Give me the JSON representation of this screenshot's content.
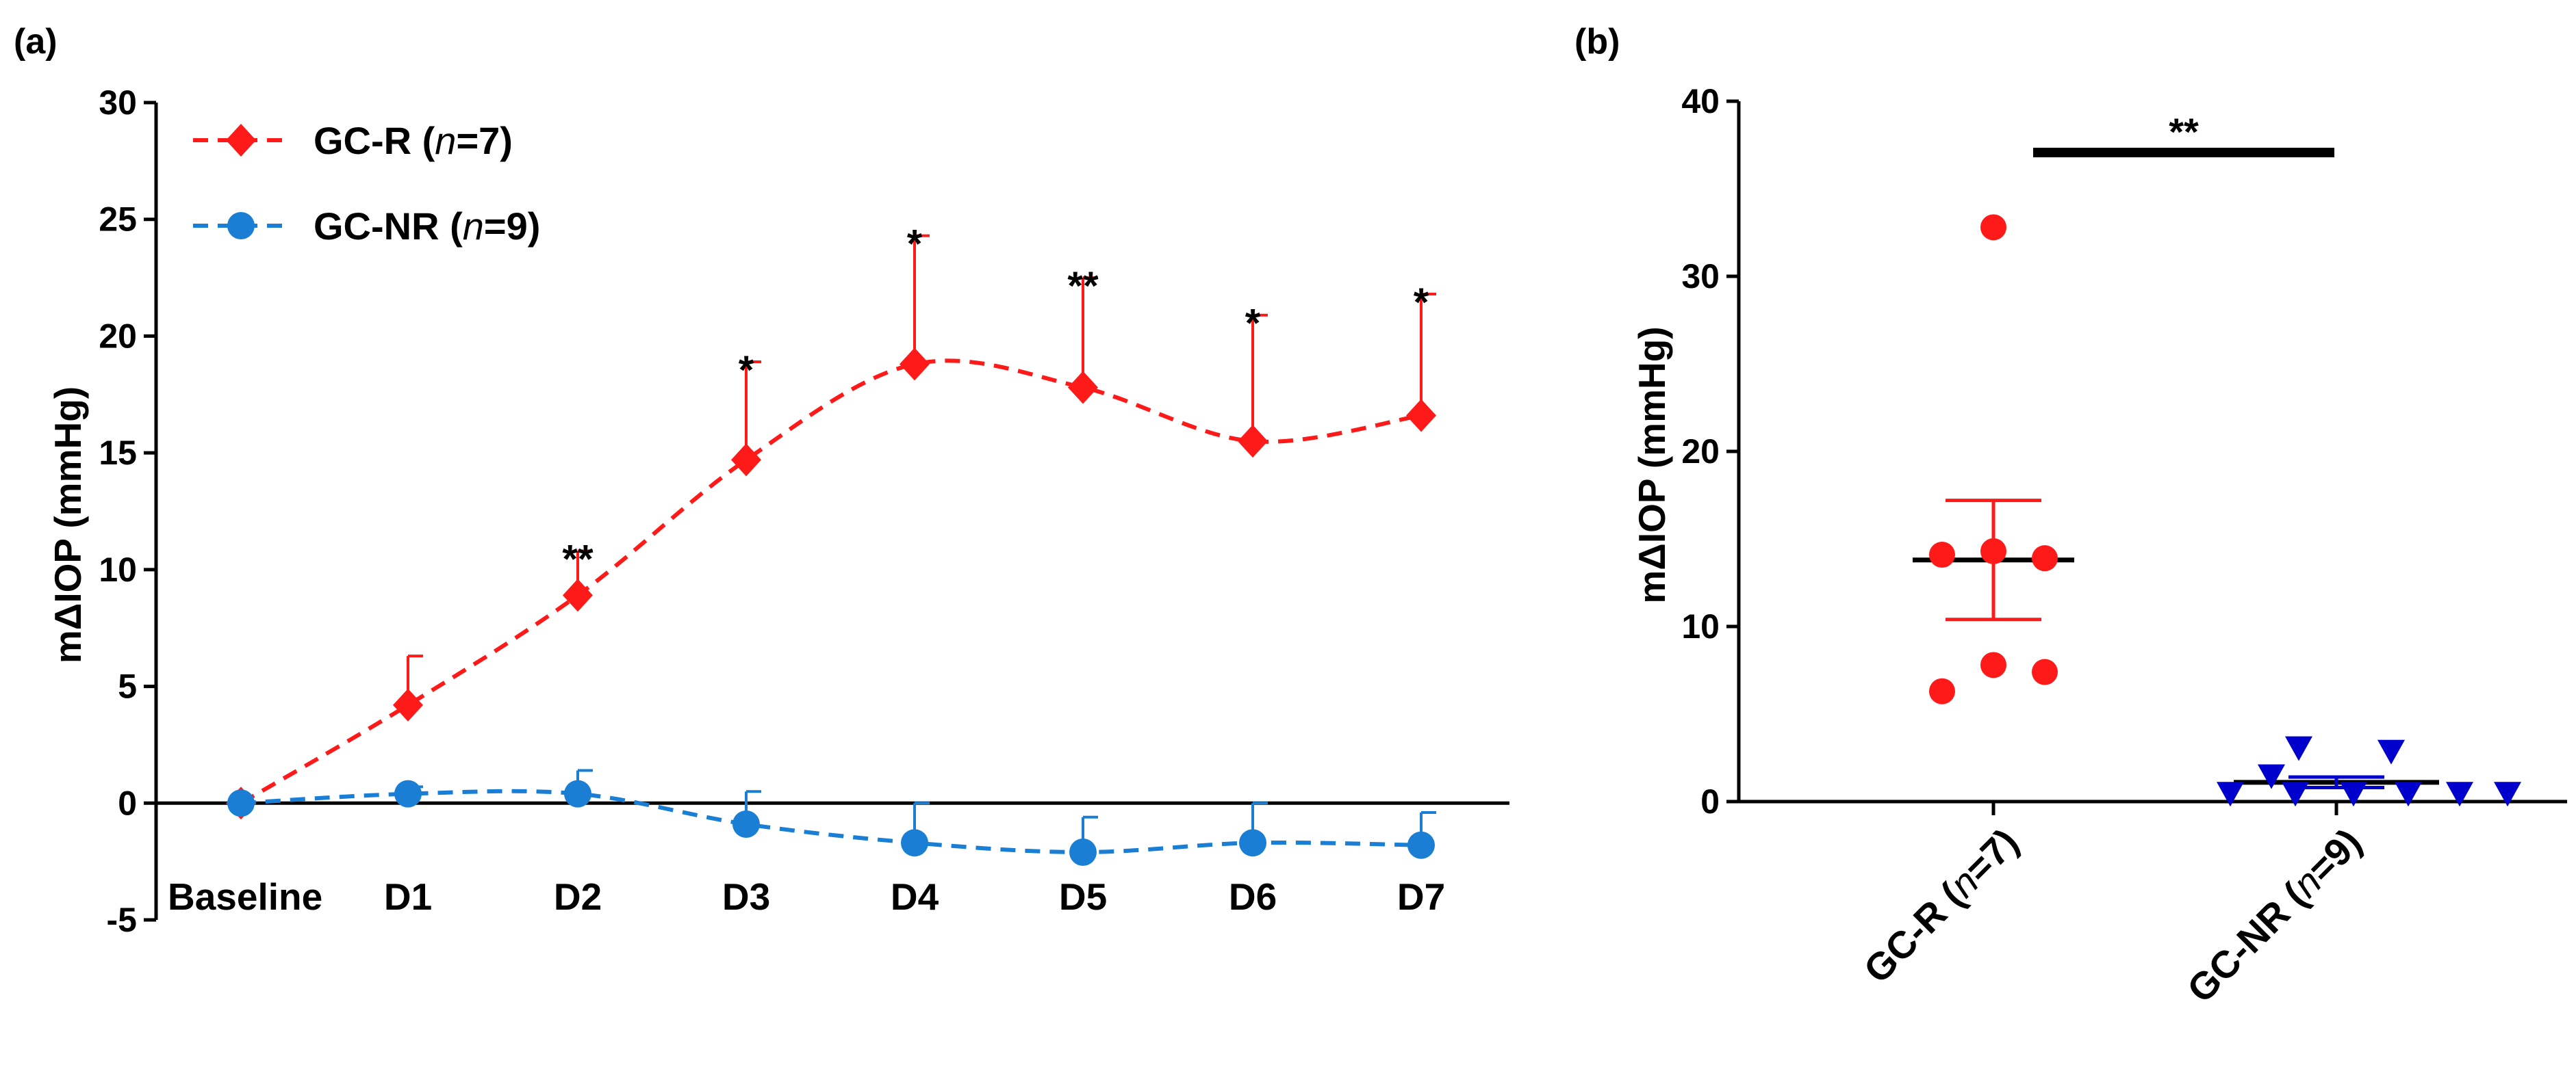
{
  "colors": {
    "gc_r": "#ff1a1a",
    "gc_nr": "#1a7fd4",
    "gc_nr_b": "#0000cc",
    "axis": "#000000"
  },
  "chart_data": [
    {
      "panel_label": "(a)",
      "type": "line",
      "ylabel": "mΔIOP (mmHg)",
      "xlabel": "",
      "ylim": [
        -5,
        30
      ],
      "yticks": [
        -5,
        0,
        5,
        10,
        15,
        20,
        25,
        30
      ],
      "categories": [
        "Baseline",
        "D1",
        "D2",
        "D3",
        "D4",
        "D5",
        "D6",
        "D7"
      ],
      "legend_position": "top-left",
      "series": [
        {
          "name": "GC-R",
          "legend_label": "GC-R (n=7)",
          "legend_prefix": "GC-R (",
          "legend_n": "n",
          "legend_suffix": "=7)",
          "marker": "diamond",
          "values": [
            0,
            4.2,
            8.9,
            14.7,
            18.8,
            17.8,
            15.5,
            16.6
          ],
          "error_upper": [
            0,
            2.1,
            1.9,
            4.2,
            5.5,
            4.7,
            5.4,
            5.2
          ],
          "significance": [
            "",
            "",
            "**",
            "*",
            "*",
            "**",
            "*",
            "*"
          ]
        },
        {
          "name": "GC-NR",
          "legend_label": "GC-NR (n=9)",
          "legend_prefix": "GC-NR (",
          "legend_n": "n",
          "legend_suffix": "=9)",
          "marker": "circle",
          "values": [
            0,
            0.4,
            0.4,
            -0.9,
            -1.7,
            -2.1,
            -1.7,
            -1.8
          ],
          "error_upper": [
            0,
            0.3,
            1.0,
            1.4,
            1.7,
            1.5,
            1.7,
            1.4
          ],
          "significance": [
            "",
            "",
            "",
            "",
            "",
            "",
            "",
            ""
          ]
        }
      ]
    },
    {
      "panel_label": "(b)",
      "type": "scatter",
      "ylabel": "mΔIOP (mmHg)",
      "ylim": [
        0,
        40
      ],
      "yticks": [
        0,
        10,
        20,
        30,
        40
      ],
      "significance_bar": "**",
      "groups": [
        {
          "name": "GC-R",
          "label_prefix": "GC-R (",
          "label_n": "n",
          "label_suffix": "=7)",
          "marker": "circle",
          "points": [
            32.8,
            14.1,
            14.3,
            13.9,
            7.8,
            7.4,
            6.3
          ],
          "mean": 13.8,
          "sem_upper": 17.2,
          "sem_lower": 10.4
        },
        {
          "name": "GC-NR",
          "label_prefix": "GC-NR (",
          "label_n": "n",
          "label_suffix": "=9)",
          "marker": "triangle-down",
          "points": [
            3.1,
            2.9,
            1.5,
            0.5,
            0.5,
            0.5,
            0.5,
            0.5,
            0.5
          ],
          "mean": 1.1,
          "sem_upper": 1.4,
          "sem_lower": 0.8
        }
      ]
    }
  ]
}
